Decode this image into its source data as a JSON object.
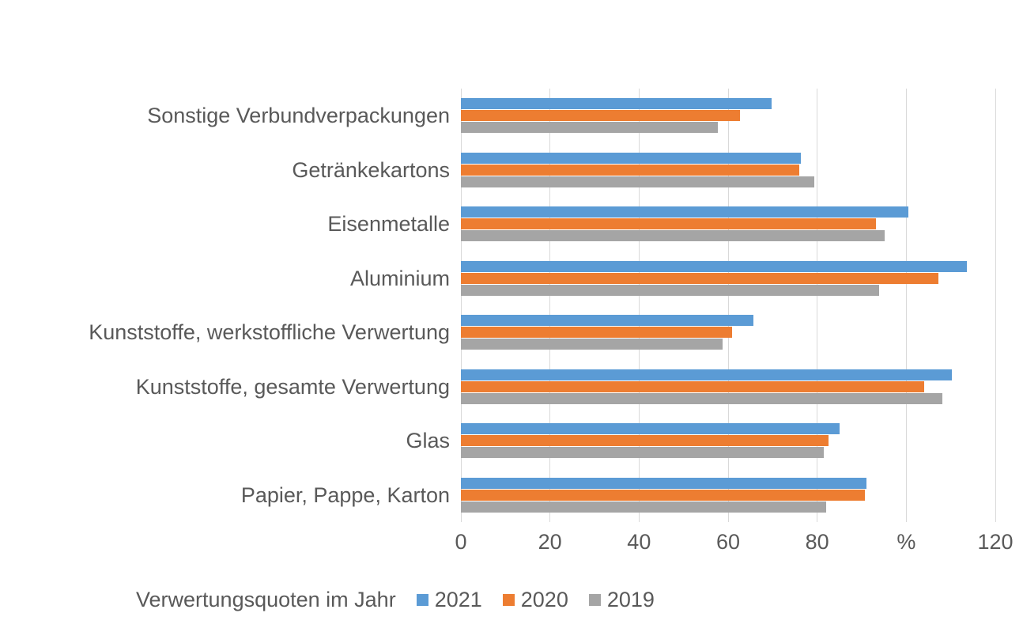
{
  "chart_data": {
    "type": "bar",
    "orientation": "horizontal",
    "legend_title": "Verwertungsquoten im Jahr",
    "legend_position": "bottom",
    "grid": true,
    "xlim": [
      0,
      120
    ],
    "x_tick_values": [
      0,
      20,
      40,
      60,
      80,
      100,
      120
    ],
    "x_tick_labels": [
      "0",
      "20",
      "40",
      "60",
      "80",
      "%",
      "120"
    ],
    "categories": [
      "Sonstige Verbundverpackungen",
      "Getränkekartons",
      "Eisenmetalle",
      "Aluminium",
      "Kunststoffe, werkstoffliche Verwertung",
      "Kunststoffe, gesamte Verwertung",
      "Glas",
      "Papier, Pappe, Karton"
    ],
    "series": [
      {
        "name": "2021",
        "color": "#5B9BD5",
        "values": [
          69.8,
          76.4,
          100.4,
          113.6,
          65.7,
          110.2,
          85.1,
          91.1
        ]
      },
      {
        "name": "2020",
        "color": "#ED7D31",
        "values": [
          62.6,
          76.0,
          93.2,
          107.2,
          60.8,
          104.1,
          82.5,
          90.7
        ]
      },
      {
        "name": "2019",
        "color": "#A5A5A5",
        "values": [
          57.7,
          79.4,
          95.2,
          93.9,
          58.7,
          108.1,
          81.5,
          82.1
        ]
      }
    ],
    "styles": {
      "text_color": "#595959",
      "gridline_color": "#D9D9D9",
      "background": "#FFFFFF"
    }
  }
}
